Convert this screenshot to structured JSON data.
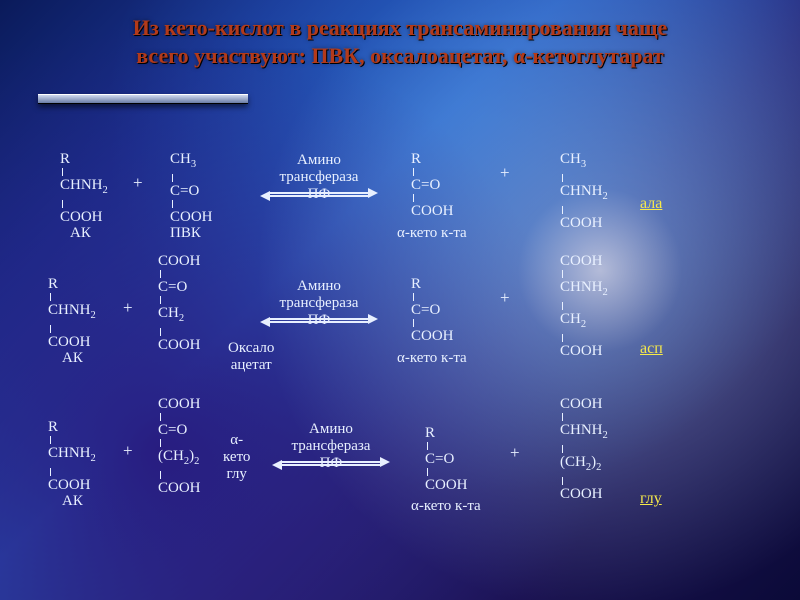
{
  "title": "Из кето-кислот в реакциях трансаминирования чаще\nвсего участвуют: ПВК, оксалоацетат, α-кетоглутарат",
  "labels": {
    "AK": "АК",
    "PVK": "ПВК",
    "oxalo": "Оксало\nацетат",
    "a_keto_glu": "α-\nкето\nглу",
    "a_keto_kta": "α-кето к-та",
    "ala": "ала",
    "asp": "асп",
    "glu": "глу",
    "plus": "+"
  },
  "enzyme": {
    "l1": "Амино",
    "l2": "трансфераза",
    "l3": "ПФ"
  },
  "frag": {
    "R": "R",
    "CHNH2": "CHNH<sub>2</sub>",
    "COOH": "COOH",
    "CH3": "CH<sub>3</sub>",
    "CeqO": "C=O",
    "CH2": "CH<sub>2</sub>",
    "CH2_2": "(CH<sub>2</sub>)<sub>2</sub>"
  },
  "colors": {
    "title": "#b33a1a",
    "text": "#e8f0ff",
    "highlight": "#f6e94a"
  }
}
